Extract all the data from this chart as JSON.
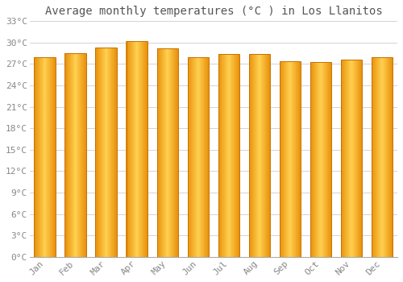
{
  "title": "Average monthly temperatures (°C ) in Los Llanitos",
  "months": [
    "Jan",
    "Feb",
    "Mar",
    "Apr",
    "May",
    "Jun",
    "Jul",
    "Aug",
    "Sep",
    "Oct",
    "Nov",
    "Dec"
  ],
  "values": [
    28.0,
    28.5,
    29.3,
    30.2,
    29.2,
    27.9,
    28.4,
    28.4,
    27.4,
    27.3,
    27.6,
    28.0
  ],
  "ylim": [
    0,
    33
  ],
  "yticks": [
    0,
    3,
    6,
    9,
    12,
    15,
    18,
    21,
    24,
    27,
    30,
    33
  ],
  "ytick_labels": [
    "0°C",
    "3°C",
    "6°C",
    "9°C",
    "12°C",
    "15°C",
    "18°C",
    "21°C",
    "24°C",
    "27°C",
    "30°C",
    "33°C"
  ],
  "bar_color_left": "#E8900A",
  "bar_color_center": "#FFD050",
  "bar_color_right": "#E8900A",
  "bar_edge_color": "#C87000",
  "background_color": "#FFFFFF",
  "grid_color": "#CCCCCC",
  "title_fontsize": 10,
  "tick_fontsize": 8,
  "bar_width": 0.7,
  "axis_color": "#888888",
  "spine_bottom_color": "#AAAAAA"
}
